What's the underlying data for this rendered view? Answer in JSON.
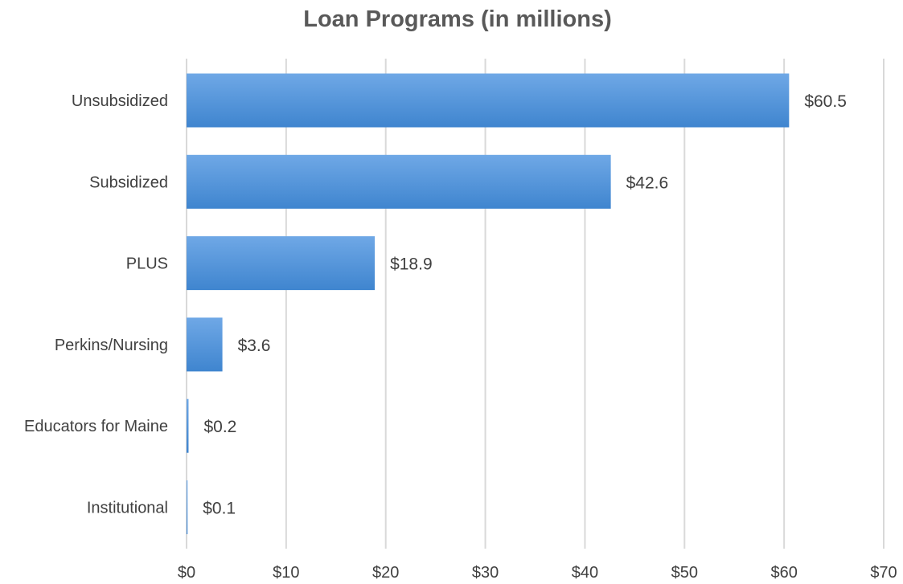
{
  "chart_data": {
    "type": "bar",
    "orientation": "horizontal",
    "title": "Loan Programs (in millions)",
    "xlabel": "",
    "ylabel": "",
    "categories": [
      "Unsubsidized",
      "Subsidized",
      "PLUS",
      "Perkins/Nursing",
      "Educators for Maine",
      "Institutional"
    ],
    "values": [
      60.5,
      42.6,
      18.9,
      3.6,
      0.2,
      0.1
    ],
    "data_labels": [
      "$60.5",
      "$42.6",
      "$18.9",
      "$3.6",
      "$0.2",
      "$0.1"
    ],
    "xlim": [
      0,
      70
    ],
    "x_ticks": [
      0,
      10,
      20,
      30,
      40,
      50,
      60,
      70
    ],
    "x_tick_labels": [
      "$0",
      "$10",
      "$20",
      "$30",
      "$40",
      "$50",
      "$60",
      "$70"
    ],
    "grid": "vertical",
    "legend": "none",
    "colors": {
      "bar_top": "#6fa8e6",
      "bar_bottom": "#3f85cf",
      "grid": "#d9d9d9",
      "text": "#404040",
      "title": "#595959"
    }
  }
}
